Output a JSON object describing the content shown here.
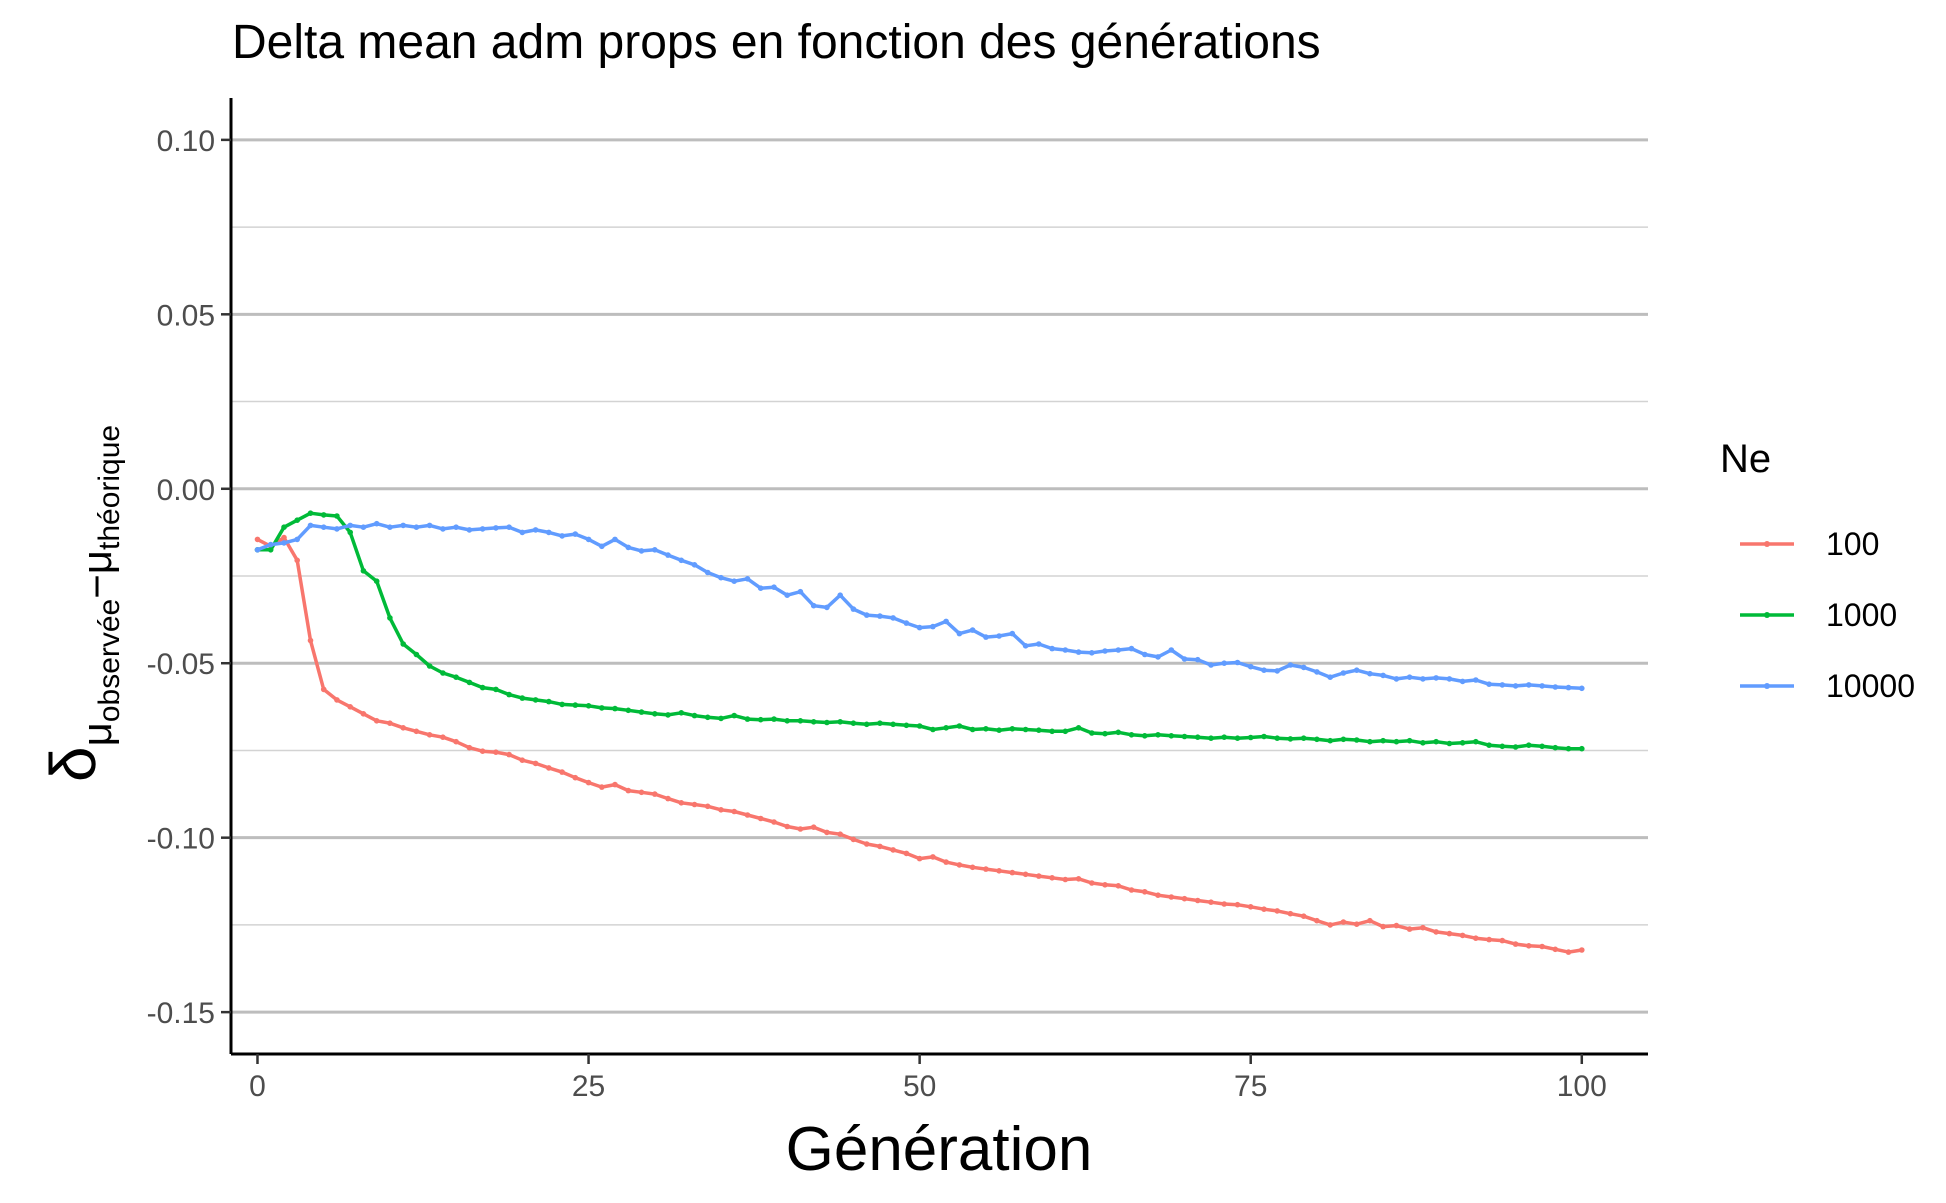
{
  "chart_data": {
    "type": "line",
    "title": "Delta mean adm props en fonction des générations",
    "xlabel": "Génération",
    "ylabel": {
      "symbol": "δ",
      "sub1": "μ",
      "sub1_sub": "observée",
      "minus": "−",
      "sub2": "μ",
      "sub2_sub": "théorique"
    },
    "xlim": [
      -2,
      105
    ],
    "ylim": [
      -0.162,
      0.112
    ],
    "x_ticks": [
      0,
      25,
      50,
      75,
      100
    ],
    "x_tick_labels": [
      "0",
      "25",
      "50",
      "75",
      "100"
    ],
    "y_ticks": [
      0.1,
      0.05,
      0.0,
      -0.05,
      -0.1,
      -0.15
    ],
    "y_tick_labels": [
      "0.10",
      "0.05",
      "0.00",
      "-0.05",
      "-0.10",
      "-0.15"
    ],
    "y_minor_ticks": [
      0.075,
      0.025,
      -0.025,
      -0.075,
      -0.125
    ],
    "grid": "horizontal",
    "legend": {
      "title": "Ne",
      "position": "right"
    },
    "x": [
      0,
      1,
      2,
      3,
      4,
      5,
      6,
      7,
      8,
      9,
      10,
      11,
      12,
      13,
      14,
      15,
      16,
      17,
      18,
      19,
      20,
      21,
      22,
      23,
      24,
      25,
      26,
      27,
      28,
      29,
      30,
      31,
      32,
      33,
      34,
      35,
      36,
      37,
      38,
      39,
      40,
      41,
      42,
      43,
      44,
      45,
      46,
      47,
      48,
      49,
      50,
      51,
      52,
      53,
      54,
      55,
      56,
      57,
      58,
      59,
      60,
      61,
      62,
      63,
      64,
      65,
      66,
      67,
      68,
      69,
      70,
      71,
      72,
      73,
      74,
      75,
      76,
      77,
      78,
      79,
      80,
      81,
      82,
      83,
      84,
      85,
      86,
      87,
      88,
      89,
      90,
      91,
      92,
      93,
      94,
      95,
      96,
      97,
      98,
      99,
      100
    ],
    "series": [
      {
        "name": "100",
        "color": "#F8766D",
        "values": [
          -0.0145,
          -0.0165,
          -0.014,
          -0.0205,
          -0.0435,
          -0.0575,
          -0.0605,
          -0.0625,
          -0.0645,
          -0.0665,
          -0.0672,
          -0.0685,
          -0.0695,
          -0.0705,
          -0.0712,
          -0.0725,
          -0.0742,
          -0.0752,
          -0.0755,
          -0.0762,
          -0.0778,
          -0.0787,
          -0.08,
          -0.0812,
          -0.0828,
          -0.0842,
          -0.0855,
          -0.0848,
          -0.0865,
          -0.087,
          -0.0875,
          -0.0888,
          -0.09,
          -0.0905,
          -0.091,
          -0.092,
          -0.0925,
          -0.0935,
          -0.0945,
          -0.0955,
          -0.0968,
          -0.0975,
          -0.097,
          -0.0985,
          -0.099,
          -0.1005,
          -0.1018,
          -0.1025,
          -0.1035,
          -0.1045,
          -0.106,
          -0.1055,
          -0.107,
          -0.1078,
          -0.1085,
          -0.109,
          -0.1095,
          -0.11,
          -0.1105,
          -0.111,
          -0.1115,
          -0.112,
          -0.1118,
          -0.113,
          -0.1135,
          -0.1138,
          -0.115,
          -0.1155,
          -0.1165,
          -0.117,
          -0.1175,
          -0.118,
          -0.1185,
          -0.119,
          -0.1192,
          -0.1198,
          -0.1205,
          -0.121,
          -0.1218,
          -0.1225,
          -0.1238,
          -0.125,
          -0.1242,
          -0.1248,
          -0.1238,
          -0.1255,
          -0.1252,
          -0.1262,
          -0.1258,
          -0.127,
          -0.1275,
          -0.128,
          -0.1288,
          -0.1292,
          -0.1295,
          -0.1305,
          -0.131,
          -0.1312,
          -0.132,
          -0.1328,
          -0.1322
        ]
      },
      {
        "name": "1000",
        "color": "#00BA38",
        "values": [
          -0.0175,
          -0.0175,
          -0.011,
          -0.009,
          -0.007,
          -0.0075,
          -0.0078,
          -0.0125,
          -0.0235,
          -0.0265,
          -0.037,
          -0.0445,
          -0.0475,
          -0.0508,
          -0.0528,
          -0.054,
          -0.0555,
          -0.057,
          -0.0575,
          -0.059,
          -0.06,
          -0.0605,
          -0.061,
          -0.0618,
          -0.062,
          -0.0622,
          -0.0628,
          -0.063,
          -0.0635,
          -0.064,
          -0.0645,
          -0.0648,
          -0.0642,
          -0.065,
          -0.0655,
          -0.0658,
          -0.065,
          -0.066,
          -0.0662,
          -0.066,
          -0.0665,
          -0.0665,
          -0.0668,
          -0.067,
          -0.0668,
          -0.0672,
          -0.0675,
          -0.0672,
          -0.0675,
          -0.0678,
          -0.068,
          -0.069,
          -0.0685,
          -0.068,
          -0.069,
          -0.0688,
          -0.0692,
          -0.0688,
          -0.069,
          -0.0692,
          -0.0695,
          -0.0695,
          -0.0685,
          -0.07,
          -0.0702,
          -0.0698,
          -0.0705,
          -0.0708,
          -0.0705,
          -0.0708,
          -0.071,
          -0.0712,
          -0.0715,
          -0.0712,
          -0.0715,
          -0.0713,
          -0.071,
          -0.0715,
          -0.0717,
          -0.0715,
          -0.0718,
          -0.0722,
          -0.0718,
          -0.072,
          -0.0725,
          -0.0722,
          -0.0725,
          -0.0722,
          -0.0728,
          -0.0725,
          -0.073,
          -0.0728,
          -0.0725,
          -0.0735,
          -0.0738,
          -0.074,
          -0.0735,
          -0.0738,
          -0.0742,
          -0.0745,
          -0.0745
        ]
      },
      {
        "name": "10000",
        "color": "#619CFF",
        "values": [
          -0.0175,
          -0.016,
          -0.0155,
          -0.0145,
          -0.0105,
          -0.011,
          -0.0115,
          -0.0105,
          -0.011,
          -0.01,
          -0.011,
          -0.0105,
          -0.011,
          -0.0105,
          -0.0115,
          -0.011,
          -0.0118,
          -0.0115,
          -0.0112,
          -0.011,
          -0.0125,
          -0.0118,
          -0.0125,
          -0.0135,
          -0.013,
          -0.0145,
          -0.0165,
          -0.0145,
          -0.0168,
          -0.0178,
          -0.0175,
          -0.019,
          -0.0205,
          -0.0218,
          -0.024,
          -0.0255,
          -0.0265,
          -0.0258,
          -0.0285,
          -0.0282,
          -0.0305,
          -0.0295,
          -0.0335,
          -0.034,
          -0.0305,
          -0.0345,
          -0.0362,
          -0.0365,
          -0.037,
          -0.0385,
          -0.0398,
          -0.0395,
          -0.038,
          -0.0415,
          -0.0405,
          -0.0425,
          -0.0422,
          -0.0415,
          -0.045,
          -0.0445,
          -0.0458,
          -0.0462,
          -0.0468,
          -0.047,
          -0.0465,
          -0.0462,
          -0.0458,
          -0.0475,
          -0.0482,
          -0.0462,
          -0.0488,
          -0.049,
          -0.0505,
          -0.05,
          -0.0498,
          -0.051,
          -0.052,
          -0.0522,
          -0.0505,
          -0.0512,
          -0.0525,
          -0.054,
          -0.0528,
          -0.052,
          -0.053,
          -0.0535,
          -0.0545,
          -0.054,
          -0.0545,
          -0.0542,
          -0.0545,
          -0.0552,
          -0.0548,
          -0.056,
          -0.0562,
          -0.0565,
          -0.0562,
          -0.0565,
          -0.0568,
          -0.057,
          -0.0572
        ]
      }
    ]
  }
}
